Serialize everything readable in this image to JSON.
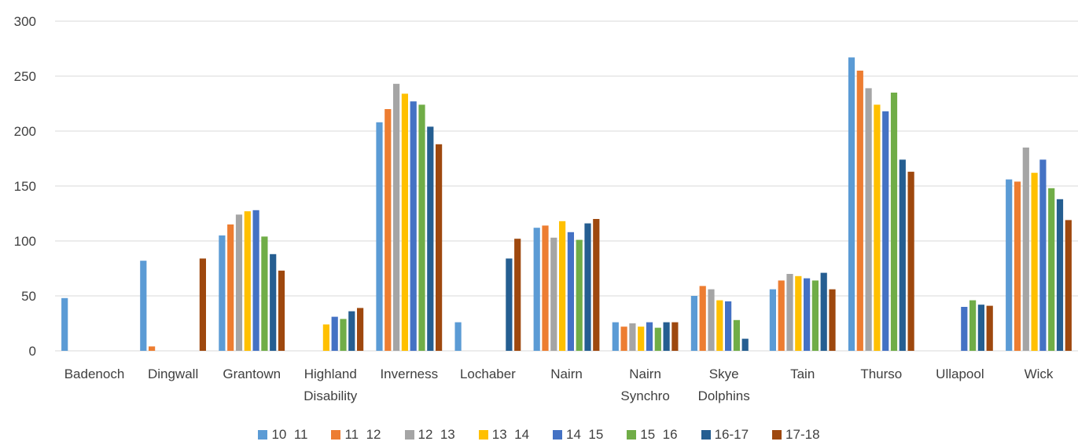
{
  "chart_data": {
    "type": "bar",
    "title": "",
    "xlabel": "",
    "ylabel": "",
    "ylim": [
      0,
      300
    ],
    "yticks": [
      0,
      50,
      100,
      150,
      200,
      250,
      300
    ],
    "grid": true,
    "legend_position": "bottom",
    "categories": [
      "Badenoch",
      "Dingwall",
      "Grantown",
      "Highland Disability",
      "Inverness",
      "Lochaber",
      "Nairn",
      "Nairn Synchro",
      "Skye Dolphins",
      "Tain",
      "Thurso",
      "Ullapool",
      "Wick"
    ],
    "category_lines": [
      [
        "Badenoch"
      ],
      [
        "Dingwall"
      ],
      [
        "Grantown"
      ],
      [
        "Highland",
        "Disability"
      ],
      [
        "Inverness"
      ],
      [
        "Lochaber"
      ],
      [
        "Nairn"
      ],
      [
        "Nairn",
        "Synchro"
      ],
      [
        "Skye",
        "Dolphins"
      ],
      [
        "Tain"
      ],
      [
        "Thurso"
      ],
      [
        "Ullapool"
      ],
      [
        "Wick"
      ]
    ],
    "series": [
      {
        "name": "10  11",
        "color": "#5b9bd5",
        "values": [
          48,
          82,
          105,
          null,
          208,
          26,
          112,
          26,
          50,
          56,
          267,
          null,
          156
        ]
      },
      {
        "name": "11  12",
        "color": "#ed7d31",
        "values": [
          null,
          4,
          115,
          null,
          220,
          null,
          114,
          22,
          59,
          64,
          255,
          null,
          154
        ]
      },
      {
        "name": "12  13",
        "color": "#a5a5a5",
        "values": [
          null,
          null,
          124,
          null,
          243,
          null,
          103,
          25,
          56,
          70,
          239,
          null,
          185
        ]
      },
      {
        "name": "13  14",
        "color": "#ffc000",
        "values": [
          null,
          null,
          127,
          24,
          234,
          null,
          118,
          22,
          46,
          68,
          224,
          null,
          162
        ]
      },
      {
        "name": "14  15",
        "color": "#4472c4",
        "values": [
          null,
          null,
          128,
          31,
          227,
          null,
          108,
          26,
          45,
          66,
          218,
          40,
          174
        ]
      },
      {
        "name": "15  16",
        "color": "#70ad47",
        "values": [
          null,
          null,
          104,
          29,
          224,
          null,
          101,
          21,
          28,
          64,
          235,
          46,
          148
        ]
      },
      {
        "name": "16-17",
        "color": "#255e91",
        "values": [
          null,
          null,
          88,
          36,
          204,
          84,
          116,
          26,
          11,
          71,
          174,
          42,
          138
        ]
      },
      {
        "name": "17-18",
        "color": "#9e480e",
        "values": [
          null,
          84,
          73,
          39,
          188,
          102,
          120,
          26,
          null,
          56,
          163,
          41,
          119
        ]
      }
    ]
  }
}
